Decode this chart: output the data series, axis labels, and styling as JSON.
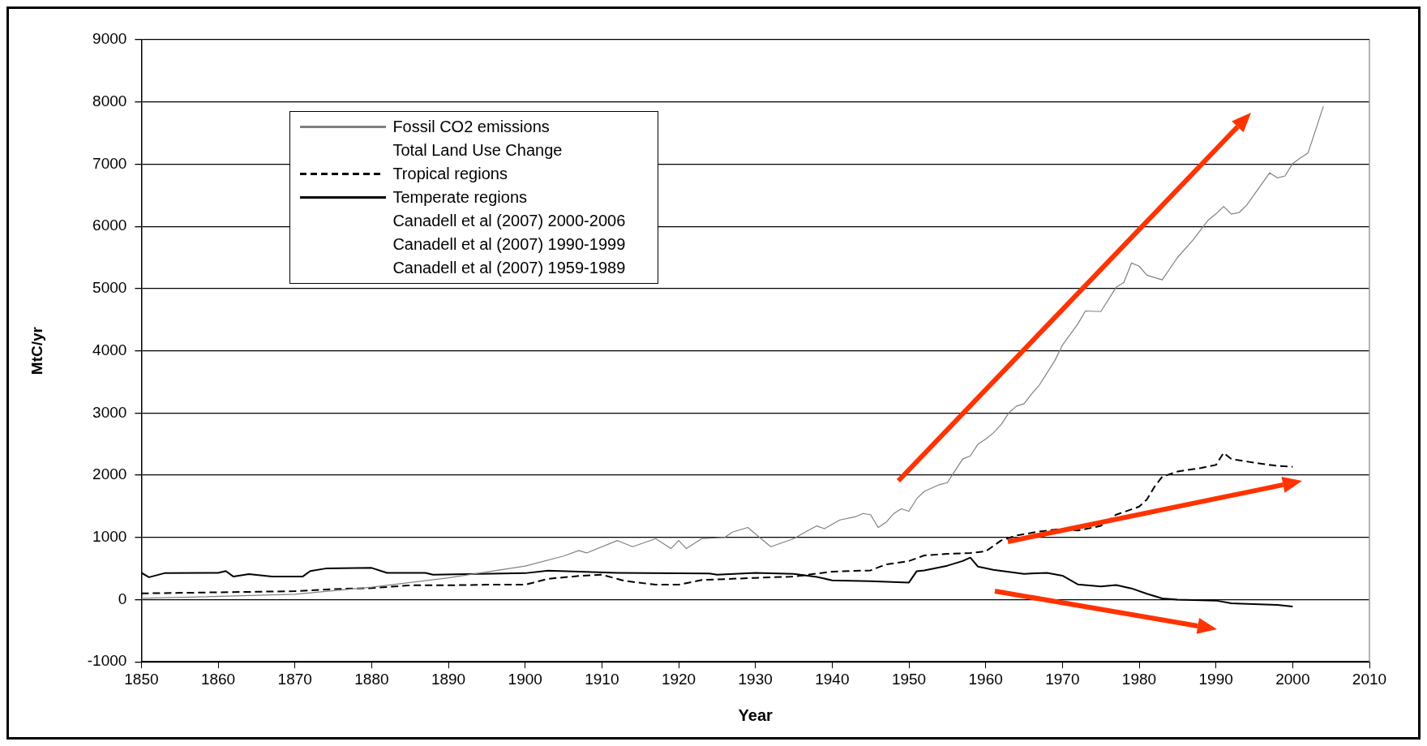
{
  "chart_data": {
    "type": "line",
    "xlabel": "Year",
    "ylabel": "MtC/yr",
    "xlim": [
      1850,
      2010
    ],
    "xticks": [
      1850,
      1860,
      1870,
      1880,
      1890,
      1900,
      1910,
      1920,
      1930,
      1940,
      1950,
      1960,
      1970,
      1980,
      1990,
      2000,
      2010
    ],
    "ylim": [
      -1000,
      9000
    ],
    "yticks": [
      -1000,
      0,
      1000,
      2000,
      3000,
      4000,
      5000,
      6000,
      7000,
      8000,
      9000
    ],
    "grid": "y",
    "legend": "top left",
    "marker": "none",
    "series": [
      {
        "name": "Fossil CO2 emissions",
        "color": "#808080",
        "line_style": "solid",
        "x": [
          1850,
          1870,
          1880,
          1890,
          1900,
          1905,
          1907,
          1908,
          1912,
          1914,
          1917,
          1919,
          1920,
          1921,
          1923,
          1926,
          1927,
          1929,
          1932,
          1935,
          1937,
          1938,
          1939,
          1941,
          1943,
          1944,
          1945,
          1946,
          1947,
          1948,
          1949,
          1950,
          1951,
          1952,
          1954,
          1955,
          1956,
          1957,
          1958,
          1959,
          1960,
          1961,
          1962,
          1963,
          1964,
          1965,
          1966,
          1967,
          1969,
          1970,
          1972,
          1973,
          1975,
          1977,
          1978,
          1979,
          1980,
          1981,
          1983,
          1985,
          1987,
          1989,
          1990,
          1991,
          1992,
          1993,
          1994,
          1997,
          1998,
          1999,
          2000,
          2001,
          2002,
          2004
        ],
        "values": [
          20,
          85,
          200,
          350,
          540,
          700,
          790,
          750,
          950,
          850,
          980,
          820,
          950,
          820,
          980,
          1000,
          1085,
          1160,
          850,
          980,
          1120,
          1185,
          1140,
          1280,
          1330,
          1385,
          1365,
          1160,
          1240,
          1380,
          1460,
          1420,
          1620,
          1740,
          1850,
          1880,
          2070,
          2260,
          2310,
          2500,
          2580,
          2680,
          2810,
          3000,
          3110,
          3150,
          3310,
          3450,
          3840,
          4090,
          4430,
          4640,
          4630,
          5020,
          5100,
          5410,
          5360,
          5215,
          5140,
          5500,
          5780,
          6100,
          6200,
          6320,
          6200,
          6220,
          6340,
          6860,
          6780,
          6810,
          7010,
          7100,
          7180,
          7930
        ]
      },
      {
        "name": "Total Land Use Change"
      },
      {
        "name": "Tropical regions",
        "color": "#000000",
        "line_style": "dashed",
        "x": [
          1850,
          1870,
          1875,
          1880,
          1885,
          1890,
          1895,
          1900,
          1903,
          1907,
          1910,
          1913,
          1917,
          1920,
          1923,
          1930,
          1935,
          1940,
          1945,
          1947,
          1950,
          1952,
          1955,
          1958,
          1960,
          1962,
          1964,
          1967,
          1970,
          1972,
          1975,
          1977,
          1980,
          1981,
          1982,
          1983,
          1985,
          1988,
          1990,
          1991,
          1992,
          1995,
          1998,
          2000
        ],
        "values": [
          100,
          135,
          170,
          185,
          230,
          230,
          240,
          240,
          335,
          380,
          400,
          300,
          240,
          240,
          315,
          350,
          370,
          450,
          470,
          565,
          620,
          710,
          735,
          750,
          775,
          950,
          1030,
          1095,
          1140,
          1110,
          1185,
          1365,
          1495,
          1610,
          1815,
          1975,
          2060,
          2115,
          2165,
          2360,
          2260,
          2200,
          2150,
          2135
        ]
      },
      {
        "name": "Temperate regions",
        "color": "#000000",
        "line_style": "solid",
        "x": [
          1850,
          1851,
          1853,
          1860,
          1861,
          1862,
          1864,
          1867,
          1871,
          1872,
          1874,
          1880,
          1882,
          1887,
          1888,
          1900,
          1903,
          1912,
          1924,
          1925,
          1930,
          1935,
          1938,
          1940,
          1945,
          1950,
          1951,
          1952,
          1955,
          1957,
          1958,
          1959,
          1961,
          1965,
          1968,
          1970,
          1972,
          1975,
          1977,
          1979,
          1981,
          1983,
          1985,
          1990,
          1992,
          1998,
          2000
        ],
        "values": [
          430,
          360,
          425,
          430,
          460,
          370,
          410,
          370,
          370,
          460,
          500,
          510,
          430,
          430,
          400,
          425,
          465,
          430,
          420,
          400,
          430,
          415,
          365,
          310,
          295,
          275,
          455,
          470,
          545,
          620,
          675,
          530,
          480,
          415,
          430,
          385,
          245,
          210,
          235,
          180,
          95,
          20,
          0,
          -15,
          -60,
          -85,
          -110
        ]
      },
      {
        "name": "Canadell et al (2007) 2000-2006"
      },
      {
        "name": "Canadell et al (2007) 1990-1999"
      },
      {
        "name": "Canadell et al (2007) 1959-1989"
      }
    ]
  }
}
